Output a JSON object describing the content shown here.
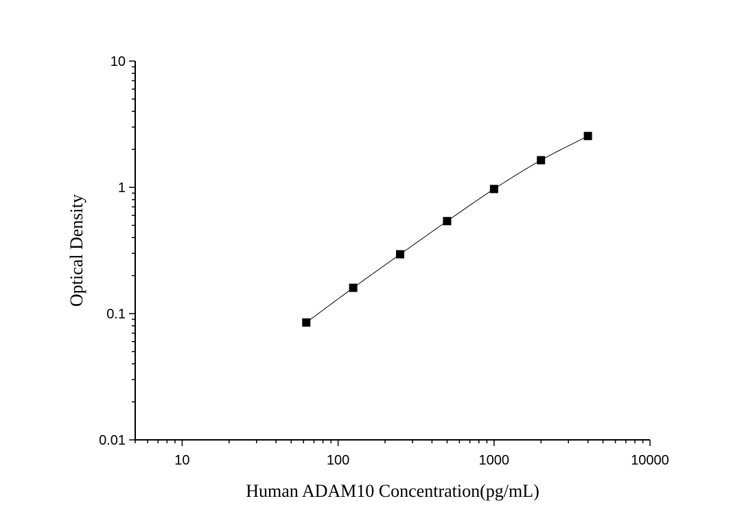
{
  "chart_data": {
    "type": "scatter",
    "xlabel": "Human ADAM10 Concentration(pg/mL)",
    "ylabel": "Optical Density",
    "xscale": "log",
    "yscale": "log",
    "xlim": [
      5,
      10000
    ],
    "ylim": [
      0.01,
      10
    ],
    "x_ticks": [
      10,
      100,
      1000,
      10000
    ],
    "x_tick_labels": [
      "10",
      "100",
      "1000",
      "10000"
    ],
    "y_ticks": [
      0.01,
      0.1,
      1,
      10
    ],
    "y_tick_labels": [
      "0.01",
      "0.1",
      "1",
      "10"
    ],
    "grid": false,
    "marker": "square",
    "fit_line": true,
    "x": [
      62.5,
      125,
      250,
      500,
      1000,
      2000,
      4000
    ],
    "y": [
      0.085,
      0.16,
      0.295,
      0.54,
      0.97,
      1.64,
      2.55
    ]
  }
}
